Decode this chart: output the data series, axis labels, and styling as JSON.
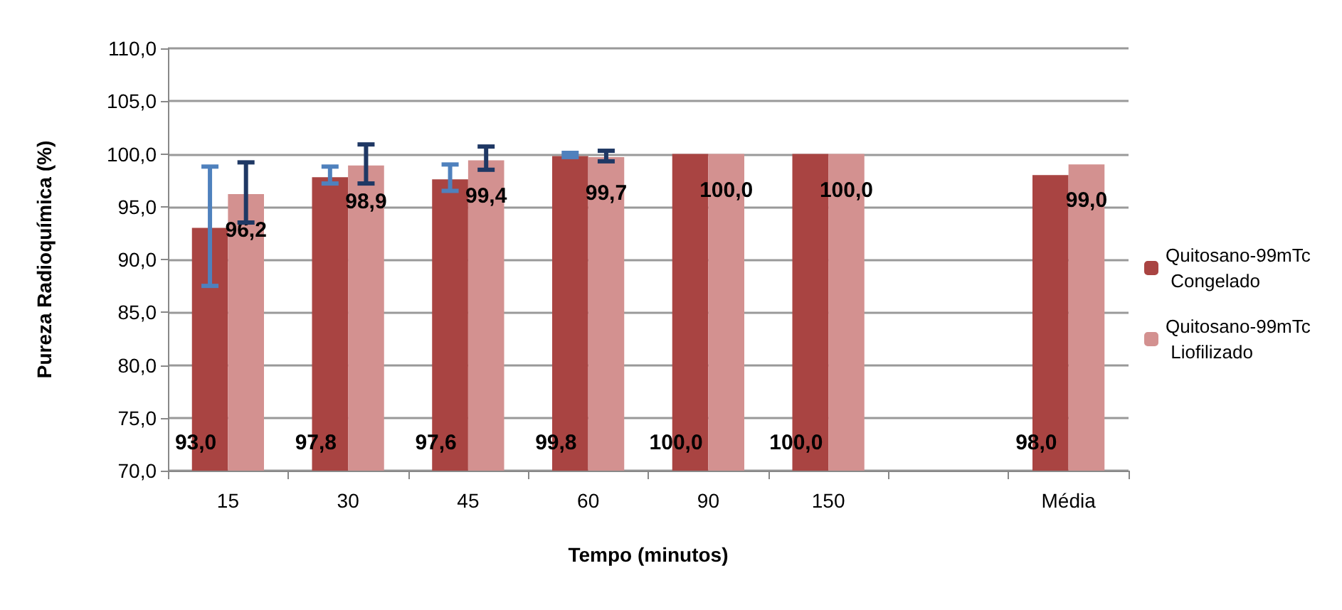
{
  "chart_data": {
    "type": "bar",
    "xlabel": "Tempo (minutos)",
    "ylabel": "Pureza Radioquímica (%)",
    "categories": [
      "15",
      "30",
      "45",
      "60",
      "90",
      "150",
      null,
      "Média"
    ],
    "series": [
      {
        "name": "Quitosano-99mTc Congelado",
        "color": "#a94442",
        "values": [
          93.0,
          97.8,
          97.6,
          99.8,
          100.0,
          100.0,
          null,
          98.0
        ],
        "value_labels": [
          "93,0",
          "97,8",
          "97,6",
          "99,8",
          "100,0",
          "100,0",
          null,
          "98,0"
        ],
        "errors": [
          [
            87.5,
            98.8
          ],
          [
            97.2,
            98.8
          ],
          [
            96.5,
            99.0
          ],
          [
            99.7,
            100.1
          ],
          null,
          null,
          null,
          null
        ]
      },
      {
        "name": "Quitosano-99mTc Liofilizado",
        "color": "#d39190",
        "values": [
          96.2,
          98.9,
          99.4,
          99.7,
          100.0,
          100.0,
          null,
          99.0
        ],
        "value_labels": [
          "96,2",
          "98,9",
          "99,4",
          "99,7",
          "100,0",
          "100,0",
          null,
          "99,0"
        ],
        "errors": [
          [
            93.5,
            99.2
          ],
          [
            97.2,
            100.9
          ],
          [
            98.5,
            100.7
          ],
          [
            99.3,
            100.3
          ],
          null,
          null,
          null,
          null
        ]
      }
    ],
    "ylim": [
      70,
      110
    ],
    "yticks": [
      {
        "value": 70,
        "label": "70,0"
      },
      {
        "value": 75,
        "label": "75,0"
      },
      {
        "value": 80,
        "label": "80,0"
      },
      {
        "value": 85,
        "label": "85,0"
      },
      {
        "value": 90,
        "label": "90,0"
      },
      {
        "value": 95,
        "label": "95,0"
      },
      {
        "value": 100,
        "label": "100,0"
      },
      {
        "value": 105,
        "label": "105,0"
      },
      {
        "value": 110,
        "label": "110,0"
      }
    ],
    "grid": "y",
    "legend": "right"
  }
}
